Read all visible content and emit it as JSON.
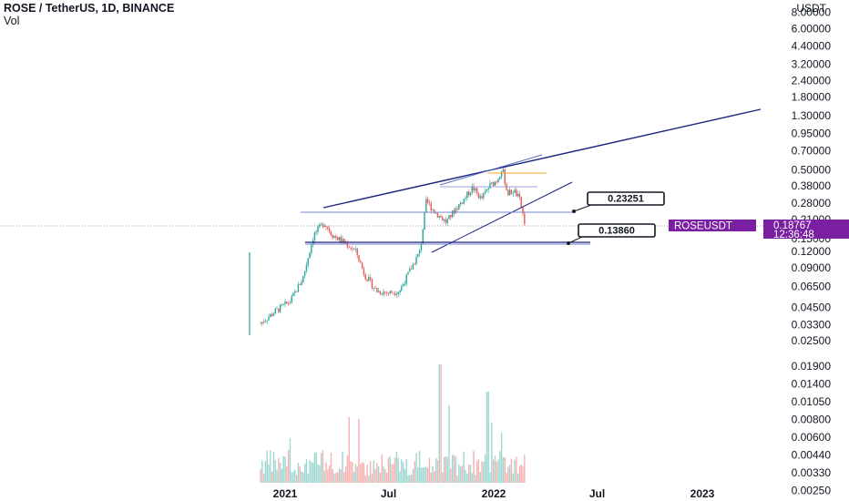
{
  "header": {
    "symbol_line": "ROSE / TetherUS, 1D, BINANCE",
    "volume_label": "Vol"
  },
  "colors": {
    "up": "#26a69a",
    "down": "#ef5350",
    "trend_line": "#1a237e",
    "channel_line": "#5c6bc0",
    "level_line": "#7986cb",
    "orange_level": "#ffa726",
    "tag_bg": "#7b1fa2",
    "price_line": "#9e9e9e"
  },
  "chart_data": {
    "type": "candlestick",
    "symbol": "ROSEUSDT",
    "y_axis": {
      "scale": "log",
      "unit": "USDT",
      "ticks": [
        "8.00000",
        "6.00000",
        "4.40000",
        "3.20000",
        "2.40000",
        "1.80000",
        "1.30000",
        "0.95000",
        "0.70000",
        "0.50000",
        "0.38000",
        "0.28000",
        "0.21000",
        "0.15000",
        "0.12000",
        "0.09000",
        "0.06500",
        "0.04500",
        "0.03300",
        "0.02500",
        "0.01900",
        "0.01400",
        "0.01050",
        "0.00800",
        "0.00600",
        "0.00440",
        "0.00330",
        "0.00250"
      ]
    },
    "x_axis": {
      "ticks": [
        {
          "label": "2021",
          "date": "2021-01-01"
        },
        {
          "label": "Jul",
          "date": "2021-07-01"
        },
        {
          "label": "2022",
          "date": "2022-01-01"
        },
        {
          "label": "Jul",
          "date": "2022-07-01"
        },
        {
          "label": "2023",
          "date": "2023-01-01"
        }
      ]
    },
    "price_path": [
      {
        "date": "2020-11-19",
        "close": 0.034
      },
      {
        "date": "2020-12-15",
        "close": 0.042
      },
      {
        "date": "2021-01-10",
        "close": 0.05
      },
      {
        "date": "2021-02-01",
        "close": 0.075
      },
      {
        "date": "2021-02-20",
        "close": 0.16
      },
      {
        "date": "2021-03-10",
        "close": 0.2
      },
      {
        "date": "2021-03-25",
        "close": 0.16
      },
      {
        "date": "2021-04-15",
        "close": 0.14
      },
      {
        "date": "2021-05-05",
        "close": 0.12
      },
      {
        "date": "2021-05-20",
        "close": 0.08
      },
      {
        "date": "2021-06-10",
        "close": 0.06
      },
      {
        "date": "2021-07-01",
        "close": 0.058
      },
      {
        "date": "2021-07-20",
        "close": 0.06
      },
      {
        "date": "2021-08-10",
        "close": 0.09
      },
      {
        "date": "2021-08-25",
        "close": 0.12
      },
      {
        "date": "2021-09-05",
        "close": 0.29
      },
      {
        "date": "2021-09-20",
        "close": 0.24
      },
      {
        "date": "2021-10-10",
        "close": 0.2
      },
      {
        "date": "2021-10-25",
        "close": 0.25
      },
      {
        "date": "2021-11-10",
        "close": 0.3
      },
      {
        "date": "2021-11-25",
        "close": 0.37
      },
      {
        "date": "2021-12-10",
        "close": 0.3
      },
      {
        "date": "2021-12-25",
        "close": 0.38
      },
      {
        "date": "2022-01-07",
        "close": 0.42
      },
      {
        "date": "2022-01-16",
        "close": 0.52
      },
      {
        "date": "2022-01-25",
        "close": 0.33
      },
      {
        "date": "2022-02-05",
        "close": 0.35
      },
      {
        "date": "2022-02-15",
        "close": 0.3
      },
      {
        "date": "2022-02-22",
        "close": 0.22
      },
      {
        "date": "2022-02-25",
        "close": 0.1877
      }
    ],
    "annotations": {
      "callouts": [
        {
          "text": "0.23251",
          "value": 0.23251
        },
        {
          "text": "0.13860",
          "value": 0.1386
        }
      ],
      "last_price_tag": {
        "symbol": "ROSEUSDT",
        "price": "0.18767",
        "countdown": "12:36:48"
      }
    }
  }
}
